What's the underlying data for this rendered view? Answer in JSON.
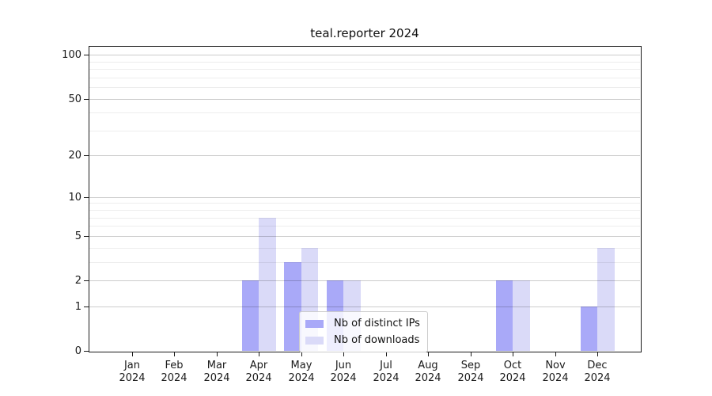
{
  "chart_data": {
    "type": "bar",
    "title": "teal.reporter 2024",
    "categories": [
      "Jan 2024",
      "Feb 2024",
      "Mar 2024",
      "Apr 2024",
      "May 2024",
      "Jun 2024",
      "Jul 2024",
      "Aug 2024",
      "Sep 2024",
      "Oct 2024",
      "Nov 2024",
      "Dec 2024"
    ],
    "series": [
      {
        "name": "Nb of distinct IPs",
        "color": "#a9a9f8",
        "values": [
          0,
          0,
          0,
          2,
          3,
          2,
          0,
          0,
          0,
          2,
          0,
          1
        ]
      },
      {
        "name": "Nb of downloads",
        "color": "#dadaf8",
        "values": [
          0,
          0,
          0,
          7,
          4,
          2,
          0,
          0,
          0,
          2,
          0,
          4
        ]
      }
    ],
    "xlabel": "",
    "ylabel": "",
    "yscale": "log1p",
    "ylim": [
      0,
      114
    ],
    "yticks": [
      0,
      1,
      2,
      5,
      10,
      20,
      50,
      100
    ],
    "minor_yticks": [
      3,
      4,
      6,
      7,
      8,
      9,
      30,
      40,
      60,
      70,
      80,
      90
    ],
    "grid": "horizontal, major and minor, drawn over bars",
    "legend_position": "lower center"
  }
}
